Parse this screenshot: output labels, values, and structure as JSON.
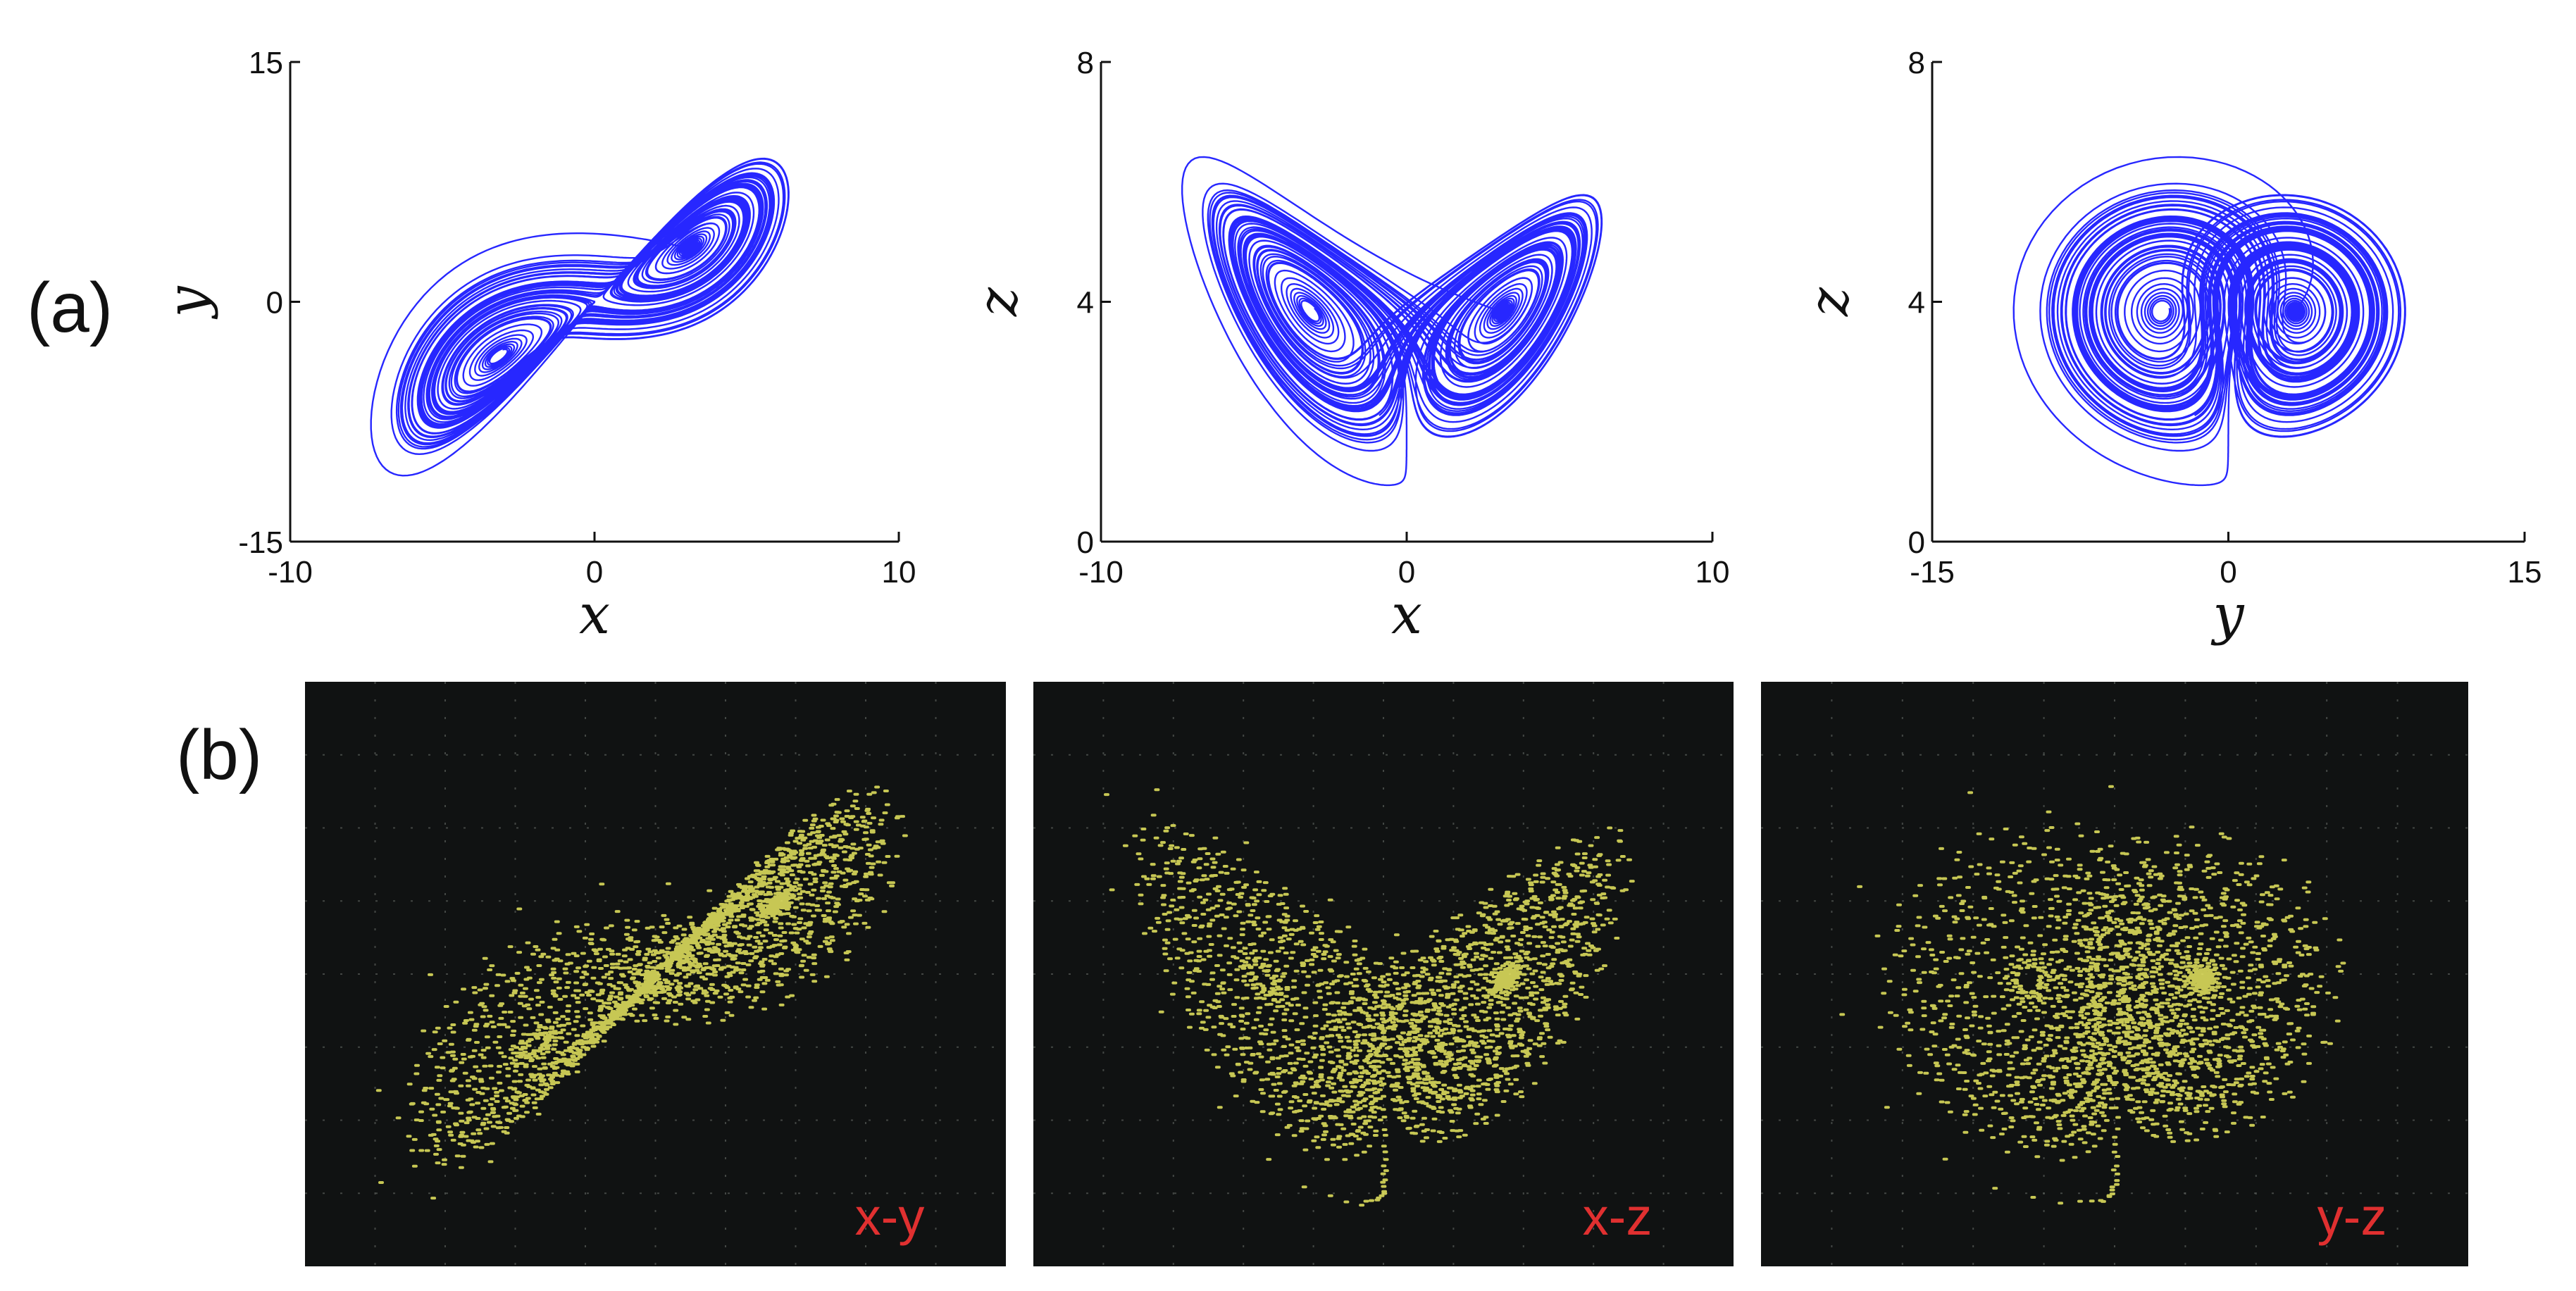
{
  "panels": {
    "a_label": "(a)",
    "b_label": "(b)"
  },
  "chart_data": [
    {
      "type": "line",
      "panel": "a",
      "xlabel": "x",
      "ylabel": "y",
      "xlim": [
        -10,
        10
      ],
      "ylim": [
        -15,
        15
      ],
      "xticks": [
        "-10",
        "0",
        "10"
      ],
      "yticks": [
        "-15",
        "0",
        "15"
      ],
      "projection": [
        "x",
        "y"
      ],
      "color": "#1010ff"
    },
    {
      "type": "line",
      "panel": "a",
      "xlabel": "x",
      "ylabel": "z",
      "xlim": [
        -10,
        10
      ],
      "ylim": [
        0,
        8
      ],
      "xticks": [
        "-10",
        "0",
        "10"
      ],
      "yticks": [
        "0",
        "4",
        "8"
      ],
      "projection": [
        "x",
        "z"
      ],
      "color": "#1010ff"
    },
    {
      "type": "line",
      "panel": "a",
      "xlabel": "y",
      "ylabel": "z",
      "xlim": [
        -15,
        15
      ],
      "ylim": [
        0,
        8
      ],
      "xticks": [
        "-15",
        "0",
        "15"
      ],
      "yticks": [
        "0",
        "4",
        "8"
      ],
      "projection": [
        "y",
        "z"
      ],
      "color": "#1010ff"
    },
    {
      "type": "scatter",
      "panel": "b",
      "annotation": "x-y",
      "projection": [
        "x",
        "y"
      ],
      "color": "#e8e860"
    },
    {
      "type": "scatter",
      "panel": "b",
      "annotation": "x-z",
      "projection": [
        "x",
        "z"
      ],
      "color": "#e8e860"
    },
    {
      "type": "scatter",
      "panel": "b",
      "annotation": "y-z",
      "projection": [
        "y",
        "z"
      ],
      "color": "#e8e860"
    }
  ]
}
